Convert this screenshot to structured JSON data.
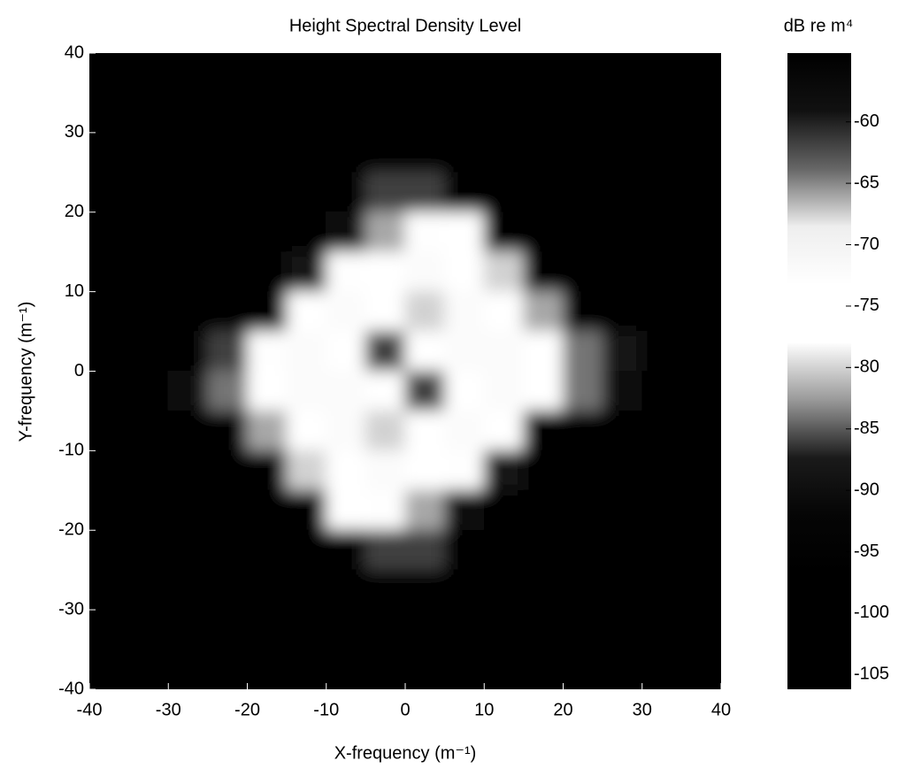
{
  "chart_data": {
    "type": "heatmap",
    "title": "Height Spectral Density Level",
    "xlabel": "X-frequency (m⁻¹)",
    "ylabel": "Y-frequency (m⁻¹)",
    "colorbar_label": "dB re m⁴",
    "xlim": [
      -40,
      40
    ],
    "ylim": [
      -40,
      40
    ],
    "xticks": [
      -40,
      -30,
      -20,
      -10,
      0,
      10,
      20,
      30,
      40
    ],
    "yticks": [
      -40,
      -30,
      -20,
      -10,
      0,
      10,
      20,
      30,
      40
    ],
    "x": [
      -37.5,
      -32.5,
      -27.5,
      -22.5,
      -17.5,
      -12.5,
      -7.5,
      -2.5,
      2.5,
      7.5,
      12.5,
      17.5,
      22.5,
      27.5,
      32.5,
      37.5
    ],
    "y": [
      37.5,
      32.5,
      27.5,
      22.5,
      17.5,
      12.5,
      7.5,
      2.5,
      -2.5,
      -7.5,
      -12.5,
      -17.5,
      -22.5,
      -27.5,
      -32.5,
      -37.5
    ],
    "z": [
      [
        -105,
        -105,
        -105,
        -105,
        -105,
        -105,
        -105,
        -100,
        -100,
        -105,
        -105,
        -105,
        -105,
        -105,
        -105,
        -105
      ],
      [
        -105,
        -105,
        -105,
        -105,
        -105,
        -105,
        -105,
        -96,
        -96,
        -105,
        -105,
        -105,
        -105,
        -105,
        -105,
        -105
      ],
      [
        -105,
        -105,
        -105,
        -105,
        -105,
        -105,
        -104,
        -92,
        -92,
        -104,
        -105,
        -105,
        -105,
        -105,
        -105,
        -105
      ],
      [
        -105,
        -105,
        -105,
        -105,
        -105,
        -104,
        -100,
        -86,
        -86,
        -100,
        -104,
        -105,
        -105,
        -105,
        -105,
        -105
      ],
      [
        -105,
        -105,
        -105,
        -105,
        -104,
        -100,
        -90,
        -82,
        -78,
        -76,
        -95,
        -104,
        -105,
        -105,
        -105,
        -105
      ],
      [
        -105,
        -105,
        -105,
        -104,
        -100,
        -88,
        -78,
        -74,
        -72,
        -74,
        -80,
        -96,
        -104,
        -105,
        -105,
        -105
      ],
      [
        -105,
        -105,
        -104,
        -102,
        -92,
        -76,
        -72,
        -74,
        -80,
        -72,
        -76,
        -82,
        -96,
        -104,
        -105,
        -105
      ],
      [
        -96,
        -94,
        -92,
        -86,
        -78,
        -72,
        -74,
        -86,
        -74,
        -72,
        -72,
        -74,
        -84,
        -88,
        -92,
        -96
      ],
      [
        -96,
        -92,
        -90,
        -84,
        -74,
        -72,
        -72,
        -74,
        -86,
        -74,
        -72,
        -76,
        -84,
        -90,
        -92,
        -96
      ],
      [
        -105,
        -105,
        -104,
        -96,
        -82,
        -76,
        -72,
        -80,
        -74,
        -72,
        -76,
        -92,
        -102,
        -104,
        -105,
        -105
      ],
      [
        -105,
        -105,
        -105,
        -104,
        -96,
        -80,
        -74,
        -72,
        -74,
        -78,
        -88,
        -100,
        -104,
        -105,
        -105,
        -105
      ],
      [
        -105,
        -105,
        -105,
        -105,
        -104,
        -95,
        -76,
        -78,
        -82,
        -90,
        -100,
        -104,
        -105,
        -105,
        -105,
        -105
      ],
      [
        -105,
        -105,
        -105,
        -105,
        -105,
        -104,
        -100,
        -86,
        -86,
        -100,
        -104,
        -105,
        -105,
        -105,
        -105,
        -105
      ],
      [
        -105,
        -105,
        -105,
        -105,
        -105,
        -105,
        -104,
        -92,
        -92,
        -104,
        -105,
        -105,
        -105,
        -105,
        -105,
        -105
      ],
      [
        -105,
        -105,
        -105,
        -105,
        -105,
        -105,
        -105,
        -96,
        -96,
        -105,
        -105,
        -105,
        -105,
        -105,
        -105,
        -105
      ],
      [
        -105,
        -105,
        -105,
        -105,
        -105,
        -105,
        -105,
        -100,
        -100,
        -105,
        -105,
        -105,
        -105,
        -105,
        -105,
        -105
      ]
    ],
    "clim": [
      -106.2,
      -54.4
    ],
    "cticks": [
      -105,
      -100,
      -95,
      -90,
      -85,
      -80,
      -75,
      -70,
      -65,
      -60
    ],
    "colorscale": [
      "#000000",
      "#000000",
      "#000000",
      "#050505",
      "#1a1a1a",
      "#999999",
      "#ffffff",
      "#ffffff",
      "#eeeeee",
      "#666666",
      "#111111",
      "#000000"
    ]
  }
}
